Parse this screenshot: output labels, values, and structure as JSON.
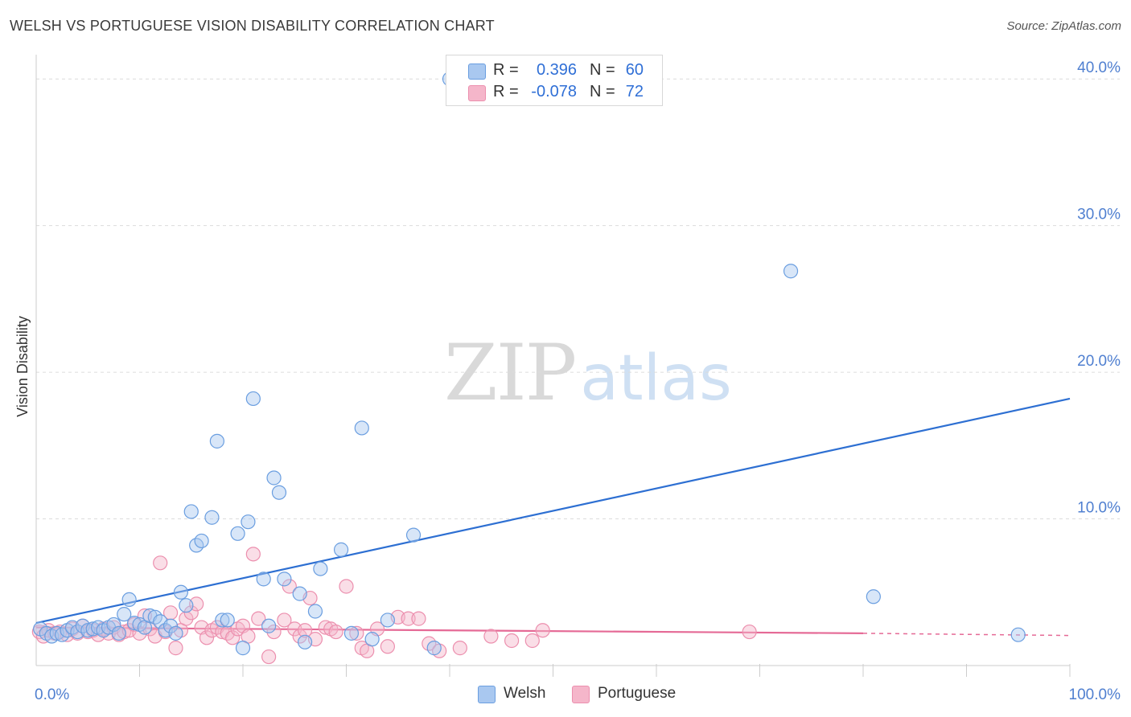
{
  "title": "WELSH VS PORTUGUESE VISION DISABILITY CORRELATION CHART",
  "source": "Source: ZipAtlas.com",
  "watermark": {
    "part1": "ZIP",
    "part2": "atlas"
  },
  "legend": {
    "welsh": {
      "r_label": "R =",
      "r_value": "0.396",
      "n_label": "N =",
      "n_value": "60"
    },
    "portuguese": {
      "r_label": "R =",
      "r_value": "-0.078",
      "n_label": "N =",
      "n_value": "72"
    }
  },
  "bottom_legend": {
    "welsh": "Welsh",
    "portuguese": "Portuguese"
  },
  "colors": {
    "welsh_fill": "#a9c8f0",
    "welsh_stroke": "#6a9ee0",
    "welsh_line": "#2d6fd2",
    "portuguese_fill": "#f5b6ca",
    "portuguese_stroke": "#ec8fae",
    "portuguese_line": "#e56a96",
    "grid": "#dcdcdc",
    "tick_label": "#4f7fd0"
  },
  "chart_data": {
    "type": "scatter",
    "title": "WELSH VS PORTUGUESE VISION DISABILITY CORRELATION CHART",
    "xlabel": "",
    "ylabel": "Vision Disability",
    "xlim": [
      0,
      100
    ],
    "ylim": [
      0,
      41
    ],
    "x_tick_labels": [
      {
        "v": 0,
        "label": "0.0%"
      },
      {
        "v": 100,
        "label": "100.0%"
      }
    ],
    "y_tick_labels": [
      {
        "v": 10,
        "label": "10.0%"
      },
      {
        "v": 20,
        "label": "20.0%"
      },
      {
        "v": 30,
        "label": "30.0%"
      },
      {
        "v": 40,
        "label": "40.0%"
      }
    ],
    "x_minor_ticks": [
      10,
      20,
      30,
      40,
      50,
      60,
      70,
      80,
      90,
      100
    ],
    "series": [
      {
        "name": "Welsh",
        "trendline": {
          "x": [
            0,
            100
          ],
          "y": [
            2.9,
            18.2
          ]
        },
        "points": [
          [
            0.4,
            2.5
          ],
          [
            1.0,
            2.2
          ],
          [
            1.5,
            2.0
          ],
          [
            2.0,
            2.2
          ],
          [
            2.5,
            2.1
          ],
          [
            3.0,
            2.4
          ],
          [
            3.5,
            2.6
          ],
          [
            4.0,
            2.3
          ],
          [
            4.5,
            2.7
          ],
          [
            5.0,
            2.4
          ],
          [
            5.5,
            2.5
          ],
          [
            6.0,
            2.6
          ],
          [
            6.5,
            2.4
          ],
          [
            7.0,
            2.6
          ],
          [
            7.5,
            2.8
          ],
          [
            8.0,
            2.2
          ],
          [
            8.5,
            3.5
          ],
          [
            9.0,
            4.5
          ],
          [
            9.5,
            2.9
          ],
          [
            10.0,
            2.8
          ],
          [
            10.5,
            2.6
          ],
          [
            11.0,
            3.4
          ],
          [
            11.5,
            3.3
          ],
          [
            12.0,
            3.0
          ],
          [
            12.5,
            2.4
          ],
          [
            13.0,
            2.7
          ],
          [
            13.5,
            2.2
          ],
          [
            14.0,
            5.0
          ],
          [
            14.5,
            4.1
          ],
          [
            15.0,
            10.5
          ],
          [
            15.5,
            8.2
          ],
          [
            16.0,
            8.5
          ],
          [
            17.0,
            10.1
          ],
          [
            17.5,
            15.3
          ],
          [
            18.0,
            3.1
          ],
          [
            18.5,
            3.1
          ],
          [
            19.5,
            9.0
          ],
          [
            20.0,
            1.2
          ],
          [
            20.5,
            9.8
          ],
          [
            21.0,
            18.2
          ],
          [
            22.0,
            5.9
          ],
          [
            22.5,
            2.7
          ],
          [
            23.0,
            12.8
          ],
          [
            23.5,
            11.8
          ],
          [
            24.0,
            5.9
          ],
          [
            25.5,
            4.9
          ],
          [
            26.0,
            1.6
          ],
          [
            27.0,
            3.7
          ],
          [
            27.5,
            6.6
          ],
          [
            29.5,
            7.9
          ],
          [
            30.5,
            2.2
          ],
          [
            31.5,
            16.2
          ],
          [
            32.5,
            1.8
          ],
          [
            34.0,
            3.1
          ],
          [
            36.5,
            8.9
          ],
          [
            38.5,
            1.2
          ],
          [
            40.0,
            40.0
          ],
          [
            73.0,
            26.9
          ],
          [
            81.0,
            4.7
          ],
          [
            95.0,
            2.1
          ]
        ]
      },
      {
        "name": "Portuguese",
        "trendline": {
          "x": [
            0,
            80
          ],
          "y": [
            2.6,
            2.2
          ],
          "dashed_extension": {
            "x": [
              80,
              100
            ],
            "y": [
              2.2,
              2.05
            ]
          }
        },
        "points": [
          [
            0.3,
            2.3
          ],
          [
            0.7,
            2.0
          ],
          [
            1.2,
            2.4
          ],
          [
            1.8,
            2.2
          ],
          [
            2.3,
            2.3
          ],
          [
            3.0,
            2.1
          ],
          [
            3.5,
            2.5
          ],
          [
            4.0,
            2.2
          ],
          [
            4.5,
            2.7
          ],
          [
            5.0,
            2.3
          ],
          [
            5.5,
            2.4
          ],
          [
            6.0,
            2.1
          ],
          [
            6.5,
            2.5
          ],
          [
            7.0,
            2.2
          ],
          [
            7.5,
            2.6
          ],
          [
            8.0,
            2.1
          ],
          [
            8.5,
            2.3
          ],
          [
            9.0,
            2.4
          ],
          [
            9.5,
            2.8
          ],
          [
            10.0,
            2.2
          ],
          [
            10.5,
            3.4
          ],
          [
            11.0,
            2.5
          ],
          [
            11.5,
            2.0
          ],
          [
            12.0,
            7.0
          ],
          [
            12.5,
            2.3
          ],
          [
            13.0,
            3.6
          ],
          [
            13.5,
            1.2
          ],
          [
            14.0,
            2.4
          ],
          [
            14.5,
            3.2
          ],
          [
            15.0,
            3.6
          ],
          [
            15.5,
            4.2
          ],
          [
            16.0,
            2.6
          ],
          [
            16.5,
            1.9
          ],
          [
            17.0,
            2.4
          ],
          [
            17.5,
            2.6
          ],
          [
            18.0,
            2.3
          ],
          [
            18.5,
            2.2
          ],
          [
            19.0,
            1.9
          ],
          [
            19.5,
            2.5
          ],
          [
            20.0,
            2.7
          ],
          [
            20.5,
            2.0
          ],
          [
            21.0,
            7.6
          ],
          [
            21.5,
            3.2
          ],
          [
            22.5,
            0.6
          ],
          [
            23.0,
            2.3
          ],
          [
            24.0,
            3.1
          ],
          [
            24.5,
            5.4
          ],
          [
            25.0,
            2.5
          ],
          [
            25.5,
            2.0
          ],
          [
            26.0,
            2.4
          ],
          [
            26.5,
            4.6
          ],
          [
            27.0,
            1.8
          ],
          [
            28.0,
            2.6
          ],
          [
            28.5,
            2.5
          ],
          [
            29.0,
            2.3
          ],
          [
            30.0,
            5.4
          ],
          [
            31.0,
            2.2
          ],
          [
            31.5,
            1.2
          ],
          [
            32.0,
            1.0
          ],
          [
            33.0,
            2.5
          ],
          [
            34.0,
            1.3
          ],
          [
            35.0,
            3.3
          ],
          [
            36.0,
            3.2
          ],
          [
            37.0,
            3.2
          ],
          [
            38.0,
            1.5
          ],
          [
            39.0,
            1.0
          ],
          [
            41.0,
            1.2
          ],
          [
            44.0,
            2.0
          ],
          [
            46.0,
            1.7
          ],
          [
            48.0,
            1.7
          ],
          [
            49.0,
            2.4
          ],
          [
            69.0,
            2.3
          ]
        ]
      }
    ]
  }
}
